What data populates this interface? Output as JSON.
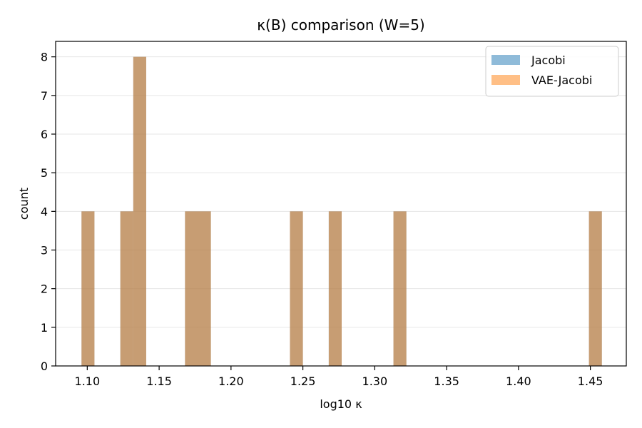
{
  "chart_data": {
    "type": "bar",
    "title": "κ(B) comparison (W=5)",
    "xlabel": "log10 κ",
    "ylabel": "count",
    "xlim": [
      1.078,
      1.475
    ],
    "ylim": [
      0,
      8.4
    ],
    "xticks": [
      "1.10",
      "1.15",
      "1.20",
      "1.25",
      "1.30",
      "1.35",
      "1.40",
      "1.45"
    ],
    "yticks": [
      "0",
      "1",
      "2",
      "3",
      "4",
      "5",
      "6",
      "7",
      "8"
    ],
    "grid": "y",
    "legend_position": "top-right",
    "bin_width": 0.009,
    "series": [
      {
        "name": "Jacobi",
        "color": "#1f77b4",
        "bins": [
          {
            "start": 1.096,
            "count": 4
          },
          {
            "start": 1.123,
            "count": 4
          },
          {
            "start": 1.132,
            "count": 8
          },
          {
            "start": 1.168,
            "count": 4
          },
          {
            "start": 1.177,
            "count": 4
          },
          {
            "start": 1.241,
            "count": 4
          },
          {
            "start": 1.268,
            "count": 4
          },
          {
            "start": 1.313,
            "count": 4
          },
          {
            "start": 1.449,
            "count": 4
          }
        ]
      },
      {
        "name": "VAE-Jacobi",
        "color": "#ff7f0e",
        "bins": [
          {
            "start": 1.096,
            "count": 4
          },
          {
            "start": 1.123,
            "count": 4
          },
          {
            "start": 1.132,
            "count": 8
          },
          {
            "start": 1.168,
            "count": 4
          },
          {
            "start": 1.177,
            "count": 4
          },
          {
            "start": 1.241,
            "count": 4
          },
          {
            "start": 1.268,
            "count": 4
          },
          {
            "start": 1.313,
            "count": 4
          },
          {
            "start": 1.449,
            "count": 4
          }
        ]
      }
    ]
  }
}
